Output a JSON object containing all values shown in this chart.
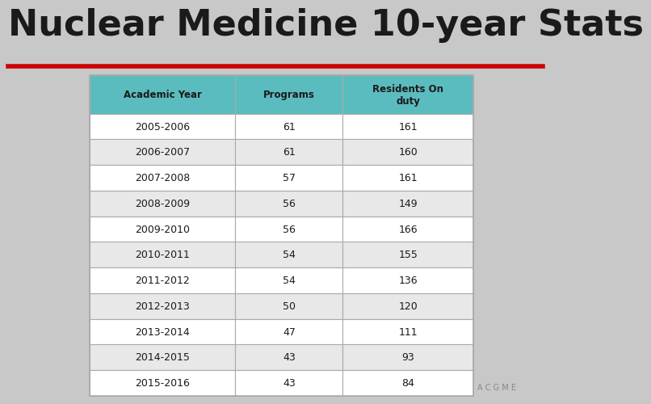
{
  "title": "Nuclear Medicine 10-year Stats",
  "title_fontsize": 32,
  "title_fontweight": "bold",
  "title_color": "#1a1a1a",
  "red_line_color": "#cc0000",
  "background_color": "#c8c8c8",
  "header_bg_color": "#5bbcbf",
  "header_text_color": "#1a1a1a",
  "row_bg_even": "#e8e8e8",
  "row_bg_odd": "#ffffff",
  "cell_text_color": "#1a1a1a",
  "border_color": "#aaaaaa",
  "columns": [
    "Academic Year",
    "Programs",
    "Residents On\nduty"
  ],
  "rows": [
    [
      "2005-2006",
      "61",
      "161"
    ],
    [
      "2006-2007",
      "61",
      "160"
    ],
    [
      "2007-2008",
      "57",
      "161"
    ],
    [
      "2008-2009",
      "56",
      "149"
    ],
    [
      "2009-2010",
      "56",
      "166"
    ],
    [
      "2010-2011",
      "54",
      "155"
    ],
    [
      "2011-2012",
      "54",
      "136"
    ],
    [
      "2012-2013",
      "50",
      "120"
    ],
    [
      "2013-2014",
      "47",
      "111"
    ],
    [
      "2014-2015",
      "43",
      "93"
    ],
    [
      "2015-2016",
      "43",
      "84"
    ]
  ],
  "acgme_text": "A C G M E",
  "acgme_color": "#888888",
  "acgme_fontsize": 7
}
